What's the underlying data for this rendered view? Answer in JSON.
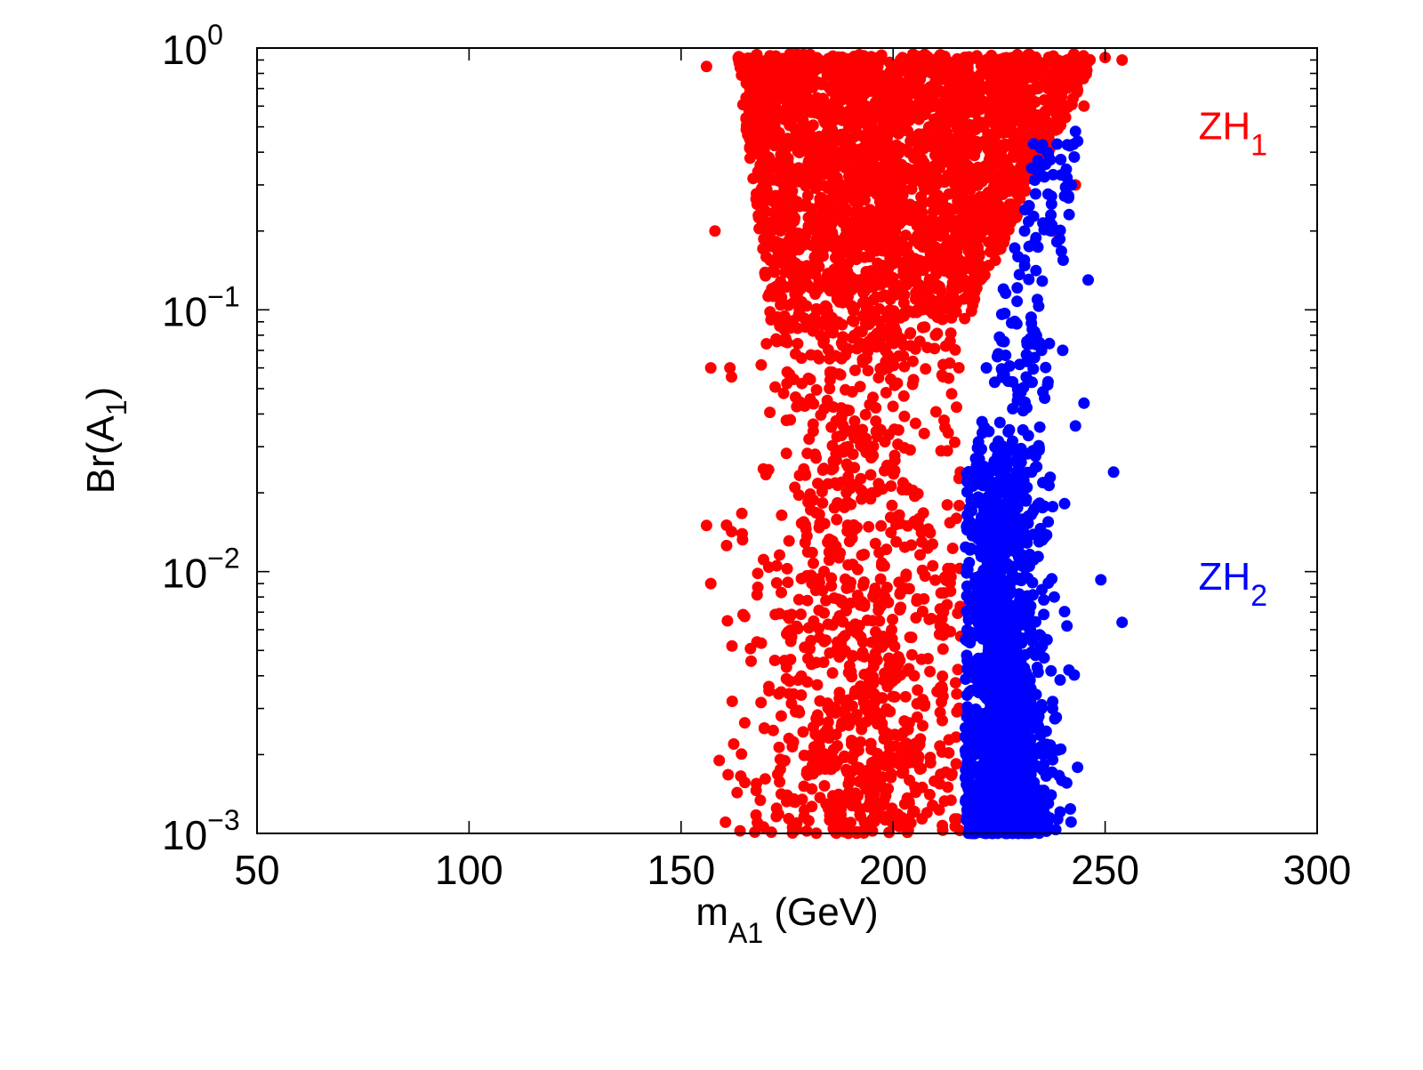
{
  "chart_data": {
    "type": "scatter",
    "x_scale": "linear",
    "y_scale": "log",
    "xlim": [
      50,
      300
    ],
    "ylim": [
      0.001,
      1
    ],
    "grid": false,
    "x_ticks": [
      50,
      100,
      150,
      200,
      250,
      300
    ],
    "x_tick_labels": [
      "50",
      "100",
      "150",
      "200",
      "250",
      "300"
    ],
    "y_ticks": [
      0.001,
      0.01,
      0.1,
      1
    ],
    "y_tick_labels": [
      {
        "base": "10",
        "exp": "−3"
      },
      {
        "base": "10",
        "exp": "−2"
      },
      {
        "base": "10",
        "exp": "−1"
      },
      {
        "base": "10",
        "exp": "0"
      }
    ],
    "xlabel": {
      "main": "m",
      "sub": "A1",
      "rest": " (GeV)"
    },
    "ylabel": {
      "main": "Br(A",
      "sub": "1",
      "rest": ")"
    },
    "series": [
      {
        "annotation": {
          "main": "ZH",
          "sub": "1"
        },
        "color": "#ff0000",
        "anchor_x": 272,
        "anchor_y": 0.5,
        "x_range": [
          155,
          254
        ],
        "y_range": [
          0.001,
          0.95
        ],
        "dense_region": {
          "x": [
            163,
            245
          ],
          "y": [
            0.07,
            0.95
          ]
        },
        "approx_point_count": 3600,
        "sample_points": [
          [
            156,
            0.85
          ],
          [
            158,
            0.2
          ],
          [
            157,
            0.06
          ],
          [
            156,
            0.015
          ],
          [
            157,
            0.009
          ],
          [
            159,
            0.0019
          ],
          [
            162,
            0.0052
          ],
          [
            168,
            0.0011
          ],
          [
            175,
            0.0014
          ],
          [
            180,
            0.4
          ],
          [
            185,
            0.05
          ],
          [
            190,
            0.3
          ],
          [
            195,
            0.02
          ],
          [
            200,
            0.15
          ],
          [
            205,
            0.004
          ],
          [
            210,
            0.08
          ],
          [
            215,
            0.6
          ],
          [
            220,
            0.35
          ],
          [
            230,
            0.9
          ],
          [
            240,
            0.8
          ],
          [
            245,
            0.6
          ],
          [
            250,
            0.92
          ],
          [
            254,
            0.9
          ],
          [
            243,
            0.3
          ],
          [
            225,
            0.25
          ],
          [
            238,
            0.2
          ],
          [
            190,
            0.0011
          ],
          [
            196,
            0.0017
          ],
          [
            208,
            0.0012
          ]
        ]
      },
      {
        "annotation": {
          "main": "ZH",
          "sub": "2"
        },
        "color": "#0000ff",
        "anchor_x": 272,
        "anchor_y": 0.0095,
        "x_range": [
          217,
          254
        ],
        "y_range": [
          0.001,
          0.5
        ],
        "dense_region": {
          "x": [
            218,
            240
          ],
          "y": [
            0.001,
            0.02
          ]
        },
        "approx_point_count": 1400,
        "sample_points": [
          [
            243,
            0.48
          ],
          [
            241,
            0.32
          ],
          [
            236,
            0.36
          ],
          [
            231,
            0.2
          ],
          [
            246,
            0.13
          ],
          [
            235,
            0.07
          ],
          [
            240,
            0.07
          ],
          [
            245,
            0.044
          ],
          [
            243,
            0.036
          ],
          [
            252,
            0.024
          ],
          [
            249,
            0.0093
          ],
          [
            254,
            0.0064
          ],
          [
            241,
            0.0062
          ],
          [
            218,
            0.015
          ],
          [
            220,
            0.004
          ],
          [
            225,
            0.002
          ],
          [
            230,
            0.0012
          ],
          [
            235,
            0.003
          ],
          [
            238,
            0.008
          ],
          [
            228,
            0.03
          ],
          [
            222,
            0.06
          ],
          [
            226,
            0.12
          ],
          [
            232,
            0.25
          ]
        ]
      }
    ]
  }
}
